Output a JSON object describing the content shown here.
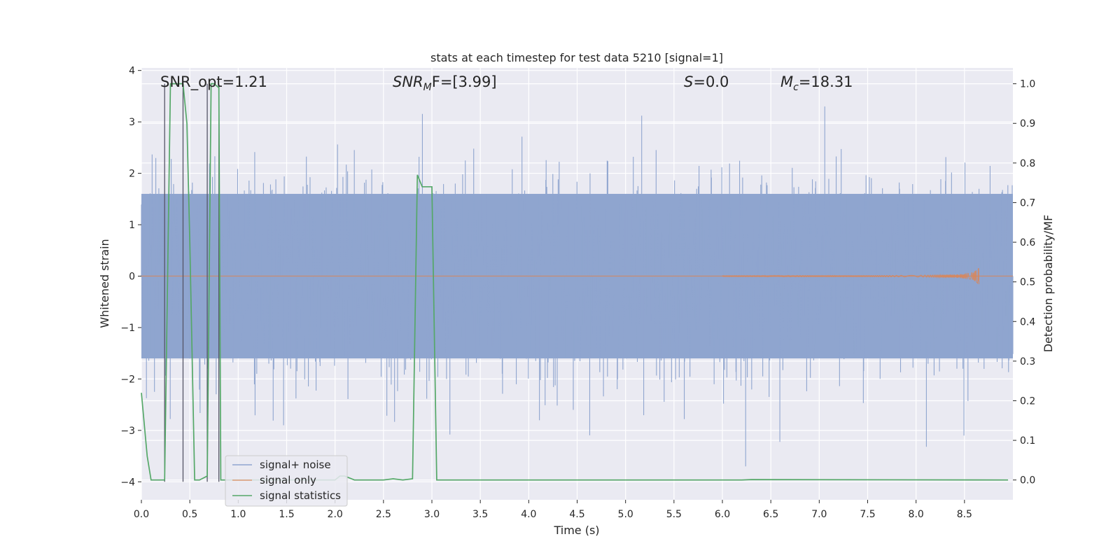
{
  "chart_data": {
    "type": "line",
    "title": "stats at each timestep for test data 5210 [signal=1]",
    "xlabel": "Time (s)",
    "ylabel_left": "Whitened strain",
    "ylabel_right": "Detection probability/MF",
    "xlim": [
      0.0,
      9.0
    ],
    "ylim_left": [
      -4.35,
      4.05
    ],
    "ylim_right": [
      -0.05,
      1.04
    ],
    "xticks": [
      0.0,
      0.5,
      1.0,
      1.5,
      2.0,
      2.5,
      3.0,
      3.5,
      4.0,
      4.5,
      5.0,
      5.5,
      6.0,
      6.5,
      7.0,
      7.5,
      8.0,
      8.5
    ],
    "xtick_labels": [
      "0.0",
      "0.5",
      "1.0",
      "1.5",
      "2.0",
      "2.5",
      "3.0",
      "3.5",
      "4.0",
      "4.5",
      "5.0",
      "5.5",
      "6.0",
      "6.5",
      "7.0",
      "7.5",
      "8.0",
      "8.5"
    ],
    "yticks_left": [
      -4,
      -3,
      -2,
      -1,
      0,
      1,
      2,
      3,
      4
    ],
    "ytick_labels_left": [
      "−4",
      "−3",
      "−2",
      "−1",
      "0",
      "1",
      "2",
      "3",
      "4"
    ],
    "yticks_right": [
      0.0,
      0.1,
      0.2,
      0.3,
      0.4,
      0.5,
      0.6,
      0.7,
      0.8,
      0.9,
      1.0
    ],
    "ytick_labels_right": [
      "0.0",
      "0.1",
      "0.2",
      "0.3",
      "0.4",
      "0.5",
      "0.6",
      "0.7",
      "0.8",
      "0.9",
      "1.0"
    ],
    "grid": true,
    "legend_position": "lower-left",
    "annotations": {
      "snr_opt": "SNR_opt=1.21",
      "snr_mf_base": "SNR",
      "snr_mf_sub": "M",
      "snr_mf_rest": "F=[3.99]",
      "s_var": "S",
      "s_rest": "=0.0",
      "mc_var": "M",
      "mc_sub": "c",
      "mc_rest": "=18.31"
    },
    "series": [
      {
        "name": "signal+ noise",
        "color": "#8fa5cf",
        "description_range": [
          -3.7,
          3.7
        ],
        "band_abs_amplitude": 1.6
      },
      {
        "name": "signal only",
        "color": "#dd8452",
        "chirp_end_time": 8.65,
        "chirp_peak_amplitude": 0.22
      },
      {
        "name": "signal statistics",
        "color": "#55a868",
        "x": [
          0.0,
          0.06,
          0.1,
          0.24,
          0.3,
          0.43,
          0.47,
          0.5,
          0.55,
          0.6,
          0.68,
          0.72,
          0.75,
          0.8,
          0.82,
          0.88,
          1.0,
          2.0,
          2.05,
          2.1,
          2.2,
          2.5,
          2.6,
          2.7,
          2.8,
          2.85,
          2.9,
          3.0,
          3.05,
          3.2,
          6.2,
          6.3,
          8.95
        ],
        "y": [
          0.22,
          0.06,
          0.0,
          0.0,
          1.0,
          1.0,
          0.9,
          0.6,
          0.0,
          0.0,
          0.01,
          1.0,
          1.0,
          0.99,
          0.0,
          0.0,
          0.0,
          0.0,
          0.01,
          0.01,
          0.0,
          0.0,
          0.003,
          0.0,
          0.003,
          0.77,
          0.74,
          0.74,
          0.0,
          0.0,
          0.0,
          0.001,
          0.0
        ]
      }
    ],
    "vertical_markers_x": [
      0.24,
      0.43,
      0.68,
      0.8
    ]
  }
}
